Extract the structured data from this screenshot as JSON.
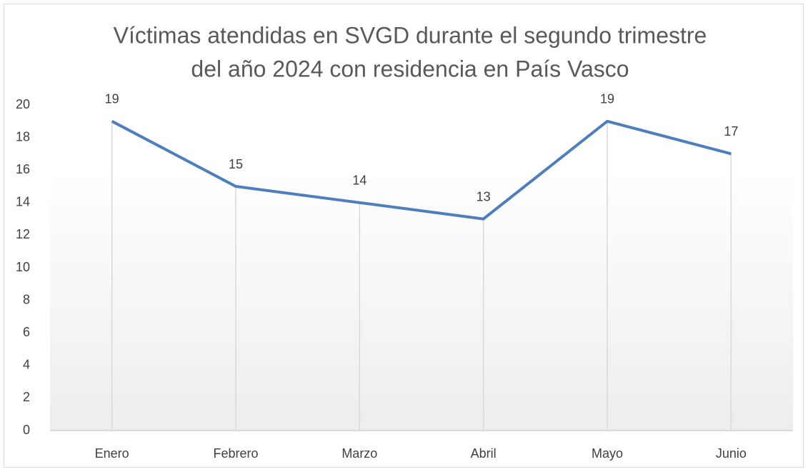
{
  "chart_data": {
    "type": "line",
    "title": [
      "Víctimas atendidas en SVGD durante el segundo trimestre",
      "del año 2024 con residencia en País Vasco"
    ],
    "categories": [
      "Enero",
      "Febrero",
      "Marzo",
      "Abril",
      "Mayo",
      "Junio"
    ],
    "series": [
      {
        "name": "Víctimas",
        "color": "#4e7ebb",
        "values": [
          19,
          15,
          14,
          13,
          19,
          17
        ]
      }
    ],
    "ylim": [
      0,
      20
    ],
    "yticks": [
      0,
      2,
      4,
      6,
      8,
      10,
      12,
      14,
      16,
      18,
      20
    ],
    "grid": false,
    "drop_lines": true,
    "data_labels": true
  }
}
